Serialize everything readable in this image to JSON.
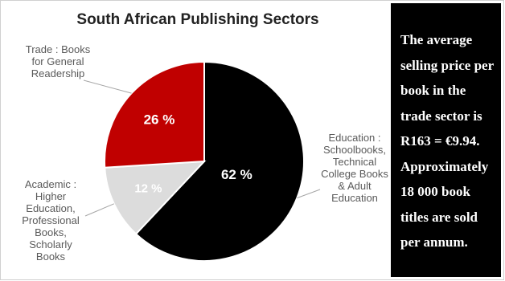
{
  "chart_data": {
    "type": "pie",
    "title": "South African Publishing Sectors",
    "slices": [
      {
        "name": "Education : Schoolbooks, Technical College Books & Adult Education",
        "value": 62,
        "label": "62 %",
        "color": "#000000",
        "label_color": "#ffffff"
      },
      {
        "name": "Academic : Higher Education, Professional Books, Scholarly Books",
        "value": 12,
        "label": "12 %",
        "color": "#dcdcdc",
        "label_color": "#ffffff"
      },
      {
        "name": "Trade : Books for General Readership",
        "value": 26,
        "label": "26 %",
        "color": "#c00000",
        "label_color": "#ffffff"
      }
    ]
  },
  "side_note": "The average selling price per book in the trade sector is R163 = €9.94. Approximately 18 000 book titles are sold per annum."
}
